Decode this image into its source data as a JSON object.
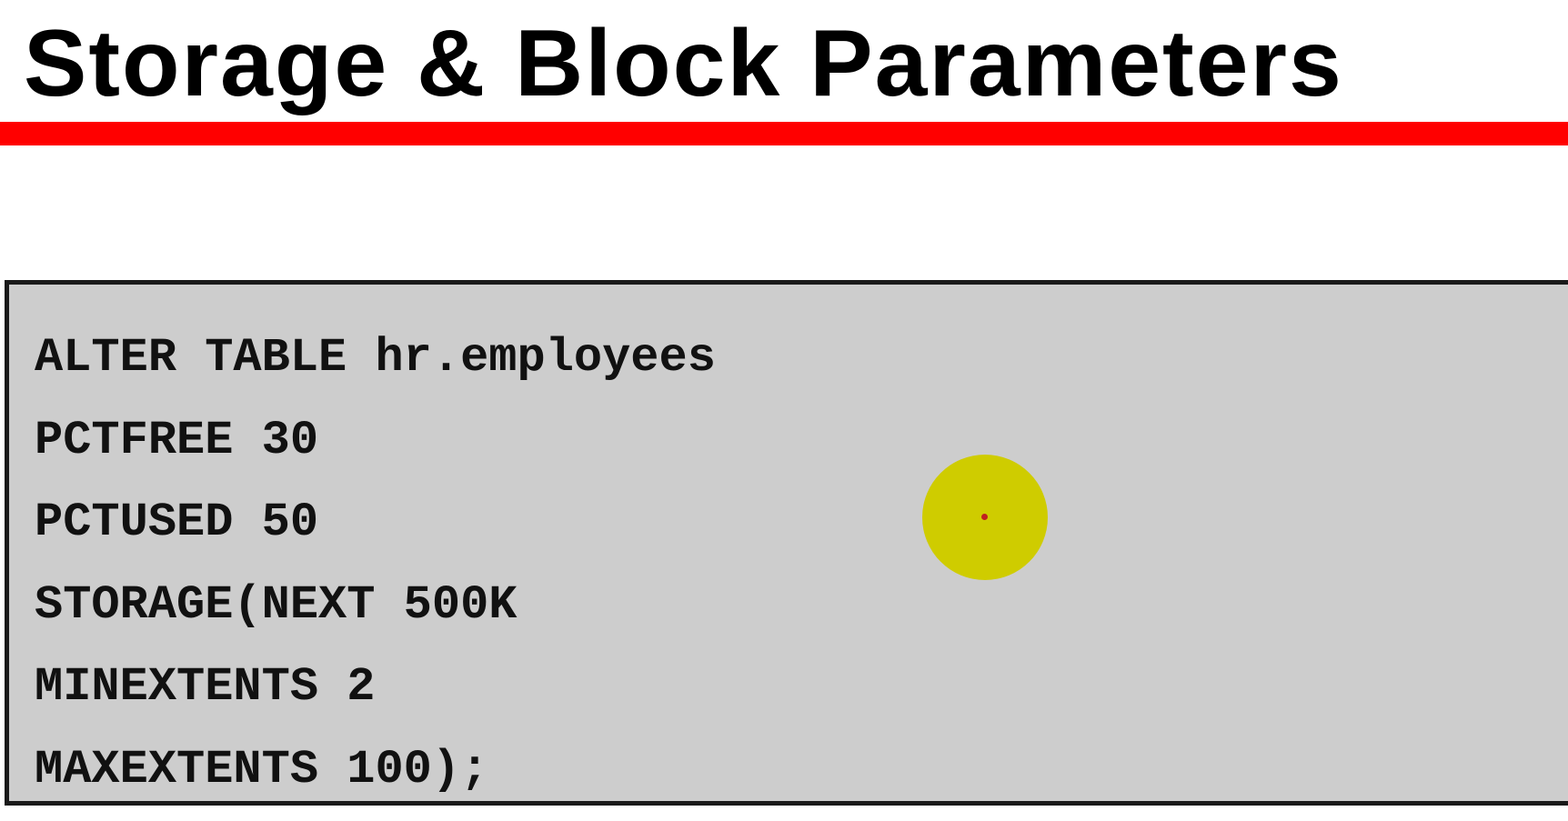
{
  "slide": {
    "title": "Storage & Block Parameters",
    "accent_color": "#ff0000"
  },
  "code_block": {
    "background_color": "#cdcdcd",
    "lines": [
      "ALTER TABLE hr.employees",
      "PCTFREE 30",
      "PCTUSED 50",
      "STORAGE(NEXT 500K",
      "MINEXTENTS 2",
      "MAXEXTENTS 100);"
    ]
  },
  "pointer": {
    "icon": "cursor-highlight-icon",
    "color": "#cfcc00"
  }
}
